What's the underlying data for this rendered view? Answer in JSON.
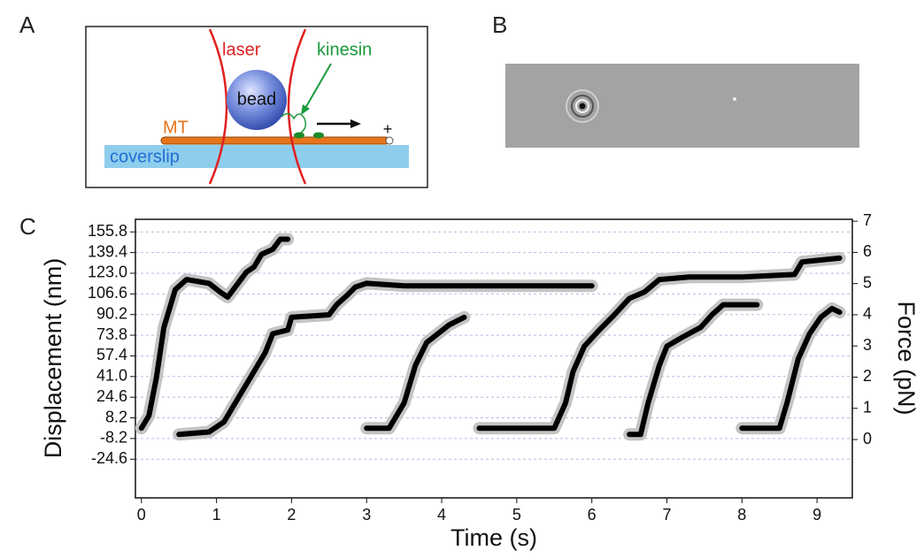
{
  "panel_labels": [
    "A",
    "B",
    "C"
  ],
  "diagram": {
    "laser": "laser",
    "kinesin": "kinesin",
    "bead": "bead",
    "microtubule": "MT",
    "plus_end": "+",
    "coverslip": "coverslip"
  },
  "chart_data": {
    "type": "line",
    "x_label": "Time (s)",
    "y_label": "Displacement (nm)",
    "y2_label": "Force (pN)",
    "xlim": [
      -0.08,
      9.47
    ],
    "xticks": [
      0,
      1,
      2,
      3,
      4,
      5,
      6,
      7,
      8,
      9
    ],
    "ylim": [
      -55.3,
      165.8
    ],
    "yticks": [
      {
        "value": -24.6,
        "label": "-24.6"
      },
      {
        "value": -8.2,
        "label": "-8.2"
      },
      {
        "value": 8.2,
        "label": "8.2"
      },
      {
        "value": 24.6,
        "label": "24.6"
      },
      {
        "value": 41,
        "label": "41.0"
      },
      {
        "value": 57.4,
        "label": "57.4"
      },
      {
        "value": 73.8,
        "label": "73.8"
      },
      {
        "value": 90.2,
        "label": "90.2"
      },
      {
        "value": 106.6,
        "label": "106.6"
      },
      {
        "value": 123,
        "label": "123.0"
      },
      {
        "value": 139.4,
        "label": "139.4"
      },
      {
        "value": 155.8,
        "label": "155.8"
      }
    ],
    "y2lim": [
      -1.87,
      7.06
    ],
    "y2ticks": [
      0,
      1,
      2,
      3,
      4,
      5,
      6,
      7
    ],
    "grid": true,
    "color": "#000000",
    "band_color": "#c4c4c4",
    "series": [
      {
        "x": [
          0,
          0.1,
          0.2,
          0.3,
          0.45,
          0.6,
          0.9,
          1.05,
          1.15,
          1.25,
          1.4,
          1.5,
          1.6,
          1.75,
          1.85,
          1.95
        ],
        "values": [
          0,
          10,
          40,
          80,
          110,
          118,
          115,
          108,
          104,
          112,
          124,
          128,
          138,
          142,
          150,
          150
        ]
      },
      {
        "x": [
          0.5,
          0.9,
          1.1,
          1.3,
          1.5,
          1.65,
          1.75,
          1.95,
          2.0,
          2.5,
          2.6,
          2.75,
          2.85,
          3.0,
          3.5,
          4.0,
          5.0,
          6.0
        ],
        "values": [
          -5,
          -3,
          5,
          25,
          45,
          60,
          75,
          78,
          88,
          90,
          98,
          106,
          112,
          115,
          113,
          113,
          113,
          113
        ]
      },
      {
        "x": [
          3.0,
          3.3,
          3.5,
          3.65,
          3.8,
          3.95,
          4.1,
          4.3
        ],
        "values": [
          0,
          0,
          20,
          50,
          68,
          75,
          82,
          88
        ]
      },
      {
        "x": [
          4.5,
          5.0,
          5.5,
          5.65,
          5.75,
          5.9,
          6.1,
          6.3,
          6.5,
          6.7,
          6.9,
          7.3,
          8.0,
          8.7,
          8.8,
          9.3
        ],
        "values": [
          0,
          0,
          0,
          20,
          45,
          65,
          78,
          90,
          103,
          108,
          118,
          120,
          120,
          122,
          132,
          135
        ]
      },
      {
        "x": [
          6.5,
          6.65,
          6.75,
          6.9,
          7.0,
          7.2,
          7.45,
          7.6,
          7.75,
          8.0,
          8.2
        ],
        "values": [
          -5,
          -5,
          20,
          50,
          65,
          72,
          80,
          90,
          98,
          98,
          98
        ]
      },
      {
        "x": [
          8.0,
          8.5,
          8.6,
          8.75,
          8.9,
          9.05,
          9.2,
          9.3
        ],
        "values": [
          0,
          0,
          20,
          55,
          75,
          88,
          95,
          92
        ]
      }
    ]
  }
}
